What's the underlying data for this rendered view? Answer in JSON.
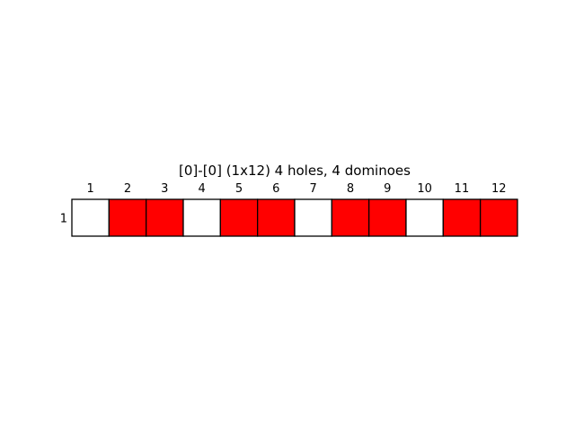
{
  "title": "[0]-[0]  (1x12) 4 holes, 4 dominoes",
  "grid": {
    "rows": 1,
    "cols": 12,
    "column_labels": [
      "1",
      "2",
      "3",
      "4",
      "5",
      "6",
      "7",
      "8",
      "9",
      "10",
      "11",
      "12"
    ],
    "row_labels": [
      "1"
    ],
    "cells": [
      [
        "hole",
        "domino",
        "domino",
        "hole",
        "domino",
        "domino",
        "hole",
        "domino",
        "domino",
        "hole",
        "domino",
        "domino"
      ]
    ],
    "colors": {
      "hole": "#ffffff",
      "domino": "#ff0000",
      "border": "#000000"
    }
  }
}
